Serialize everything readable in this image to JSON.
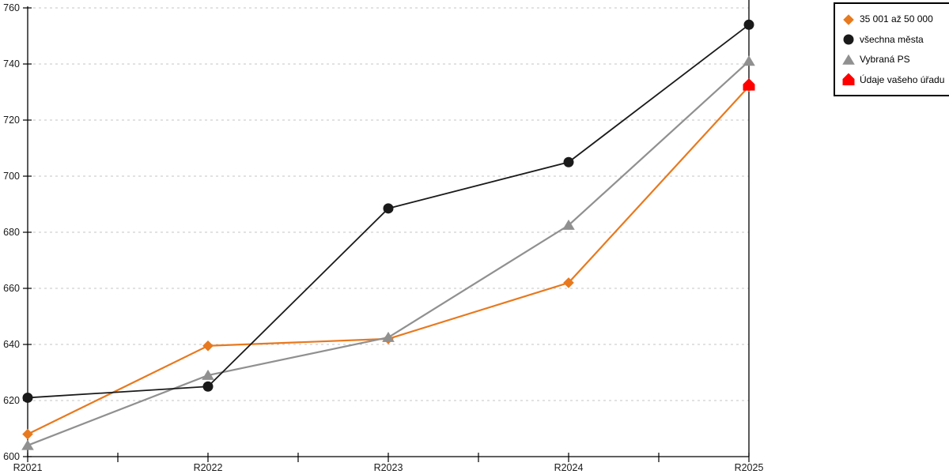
{
  "chart_data": {
    "type": "line",
    "title": "",
    "xlabel": "",
    "ylabel": "",
    "categories": [
      "R2021",
      "R2022",
      "R2023",
      "R2024",
      "R2025"
    ],
    "y_axis": {
      "min": 600,
      "max": 760,
      "tick_step": 20,
      "ticks": [
        600,
        620,
        640,
        660,
        680,
        700,
        720,
        740,
        760
      ]
    },
    "series": [
      {
        "name": "35 001 až 50 000",
        "marker": "diamond",
        "color": "#E8791E",
        "values": [
          608,
          639.5,
          642,
          662,
          732
        ]
      },
      {
        "name": "všechna města",
        "marker": "circle",
        "color": "#1A1A1A",
        "values": [
          621,
          625,
          688.5,
          705,
          754
        ]
      },
      {
        "name": "Vybraná PS",
        "marker": "triangle",
        "color": "#909090",
        "values": [
          604,
          629,
          642.5,
          682.5,
          741
        ]
      },
      {
        "name": "Údaje vašeho úřadu",
        "marker": "pentagon",
        "color": "#FF0000",
        "values": [
          null,
          null,
          null,
          null,
          732.5
        ]
      }
    ],
    "legend_position": "top-right",
    "grid": "horizontal-dashed"
  },
  "colors": {
    "background": "#FFFFFF",
    "axis": "#000000",
    "gridline": "#C4C4C4",
    "tick_label": "#1A1A1A",
    "legend_border": "#000000",
    "series_orange": "#E8791E",
    "series_black": "#1A1A1A",
    "series_gray": "#909090",
    "series_red": "#FF0000"
  }
}
